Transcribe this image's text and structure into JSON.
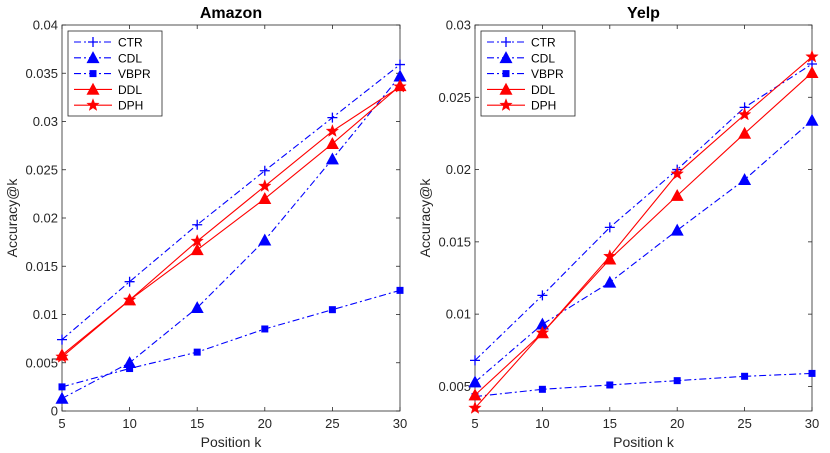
{
  "chart_data": [
    {
      "type": "line",
      "title": "Amazon",
      "xlabel": "Position k",
      "ylabel": "Accuracy@k",
      "x": [
        5,
        10,
        15,
        20,
        25,
        30
      ],
      "xlim": [
        5,
        30
      ],
      "ylim": [
        0,
        0.04
      ],
      "xticks": [
        5,
        10,
        15,
        20,
        25,
        30
      ],
      "xtick_labels": [
        "5",
        "10",
        "15",
        "20",
        "25",
        "30"
      ],
      "yticks": [
        0,
        0.005,
        0.01,
        0.015,
        0.02,
        0.025,
        0.03,
        0.035,
        0.04
      ],
      "ytick_labels": [
        "0",
        "0.005",
        "0.01",
        "0.015",
        "0.02",
        "0.025",
        "0.03",
        "0.035",
        "0.04"
      ],
      "legend_position": "top-left",
      "series": [
        {
          "name": "CTR",
          "color": "#0000ff",
          "dash": "dashdot",
          "marker": "plus",
          "values": [
            0.0074,
            0.0134,
            0.0193,
            0.0249,
            0.0304,
            0.0359
          ]
        },
        {
          "name": "CDL",
          "color": "#0000ff",
          "dash": "dashdot",
          "marker": "triangle",
          "values": [
            0.0013,
            0.005,
            0.0107,
            0.0177,
            0.0261,
            0.0347
          ]
        },
        {
          "name": "VBPR",
          "color": "#0000ff",
          "dash": "dashdot",
          "marker": "square",
          "values": [
            0.0025,
            0.0044,
            0.0061,
            0.0085,
            0.0105,
            0.0125
          ]
        },
        {
          "name": "DDL",
          "color": "#ff0000",
          "dash": "solid",
          "marker": "triangle",
          "values": [
            0.0058,
            0.0115,
            0.0167,
            0.022,
            0.0277,
            0.0337
          ]
        },
        {
          "name": "DPH",
          "color": "#ff0000",
          "dash": "solid",
          "marker": "star",
          "values": [
            0.0056,
            0.0115,
            0.0176,
            0.0233,
            0.029,
            0.0336
          ]
        }
      ]
    },
    {
      "type": "line",
      "title": "Yelp",
      "xlabel": "Position k",
      "ylabel": "Accuracy@k",
      "x": [
        5,
        10,
        15,
        20,
        25,
        30
      ],
      "xlim": [
        5,
        30
      ],
      "ylim": [
        0.0033,
        0.03
      ],
      "xticks": [
        5,
        10,
        15,
        20,
        25,
        30
      ],
      "xtick_labels": [
        "5",
        "10",
        "15",
        "20",
        "25",
        "30"
      ],
      "yticks": [
        0.005,
        0.01,
        0.015,
        0.02,
        0.025,
        0.03
      ],
      "ytick_labels": [
        "0.005",
        "0.01",
        "0.015",
        "0.02",
        "0.025",
        "0.03"
      ],
      "legend_position": "top-left",
      "series": [
        {
          "name": "CTR",
          "color": "#0000ff",
          "dash": "dashdot",
          "marker": "plus",
          "values": [
            0.0068,
            0.0113,
            0.016,
            0.02,
            0.0243,
            0.0273
          ]
        },
        {
          "name": "CDL",
          "color": "#0000ff",
          "dash": "dashdot",
          "marker": "triangle",
          "values": [
            0.0053,
            0.0093,
            0.0122,
            0.0158,
            0.0193,
            0.0234
          ]
        },
        {
          "name": "VBPR",
          "color": "#0000ff",
          "dash": "dashdot",
          "marker": "square",
          "values": [
            0.0043,
            0.0048,
            0.0051,
            0.0054,
            0.0057,
            0.0059
          ]
        },
        {
          "name": "DDL",
          "color": "#ff0000",
          "dash": "solid",
          "marker": "triangle",
          "values": [
            0.0044,
            0.0087,
            0.0138,
            0.0182,
            0.0225,
            0.0267
          ]
        },
        {
          "name": "DPH",
          "color": "#ff0000",
          "dash": "solid",
          "marker": "star",
          "values": [
            0.0035,
            0.0087,
            0.014,
            0.0197,
            0.0238,
            0.0278
          ]
        }
      ]
    }
  ]
}
